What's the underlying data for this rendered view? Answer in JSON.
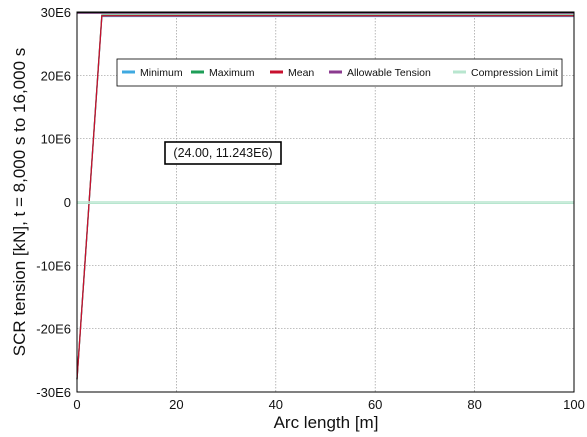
{
  "chart_data": {
    "type": "line",
    "title": "",
    "xlabel": "Arc length [m]",
    "ylabel": "SCR tension [kN], t = 8,000 s to 16,000 s",
    "xlim": [
      0,
      100
    ],
    "ylim": [
      -30000000,
      30000000
    ],
    "x_ticks": [
      {
        "value": 0,
        "label": "0"
      },
      {
        "value": 20,
        "label": "20"
      },
      {
        "value": 40,
        "label": "40"
      },
      {
        "value": 60,
        "label": "60"
      },
      {
        "value": 80,
        "label": "80"
      },
      {
        "value": 100,
        "label": "100"
      }
    ],
    "y_ticks": [
      {
        "value": 30000000,
        "label": "30E6"
      },
      {
        "value": 20000000,
        "label": "20E6"
      },
      {
        "value": 10000000,
        "label": "10E6"
      },
      {
        "value": 0,
        "label": "0"
      },
      {
        "value": -10000000,
        "label": "-10E6"
      },
      {
        "value": -20000000,
        "label": "-20E6"
      },
      {
        "value": -30000000,
        "label": "-30E6"
      }
    ],
    "grid": true,
    "legend_position": "top",
    "series": [
      {
        "name": "Minimum",
        "color": "#3fa9e0",
        "x": [
          0,
          5,
          100
        ],
        "y": [
          -28000000,
          29300000,
          29300000
        ]
      },
      {
        "name": "Maximum",
        "color": "#1e9e57",
        "x": [
          0,
          5,
          100
        ],
        "y": [
          -28000000,
          29500000,
          29500000
        ]
      },
      {
        "name": "Mean",
        "color": "#c8102e",
        "x": [
          0,
          5,
          100
        ],
        "y": [
          -28000000,
          29400000,
          29400000
        ]
      },
      {
        "name": "Allowable Tension",
        "color": "#8b3a8f",
        "x": [
          0,
          100
        ],
        "y": [
          29900000,
          29900000
        ]
      },
      {
        "name": "Compression Limit",
        "color": "#b8e6cf",
        "x": [
          0,
          100
        ],
        "y": [
          0,
          0
        ]
      }
    ],
    "annotation": {
      "text": "(24.00, 11.243E6)",
      "x": 24,
      "y": 11243000
    }
  }
}
